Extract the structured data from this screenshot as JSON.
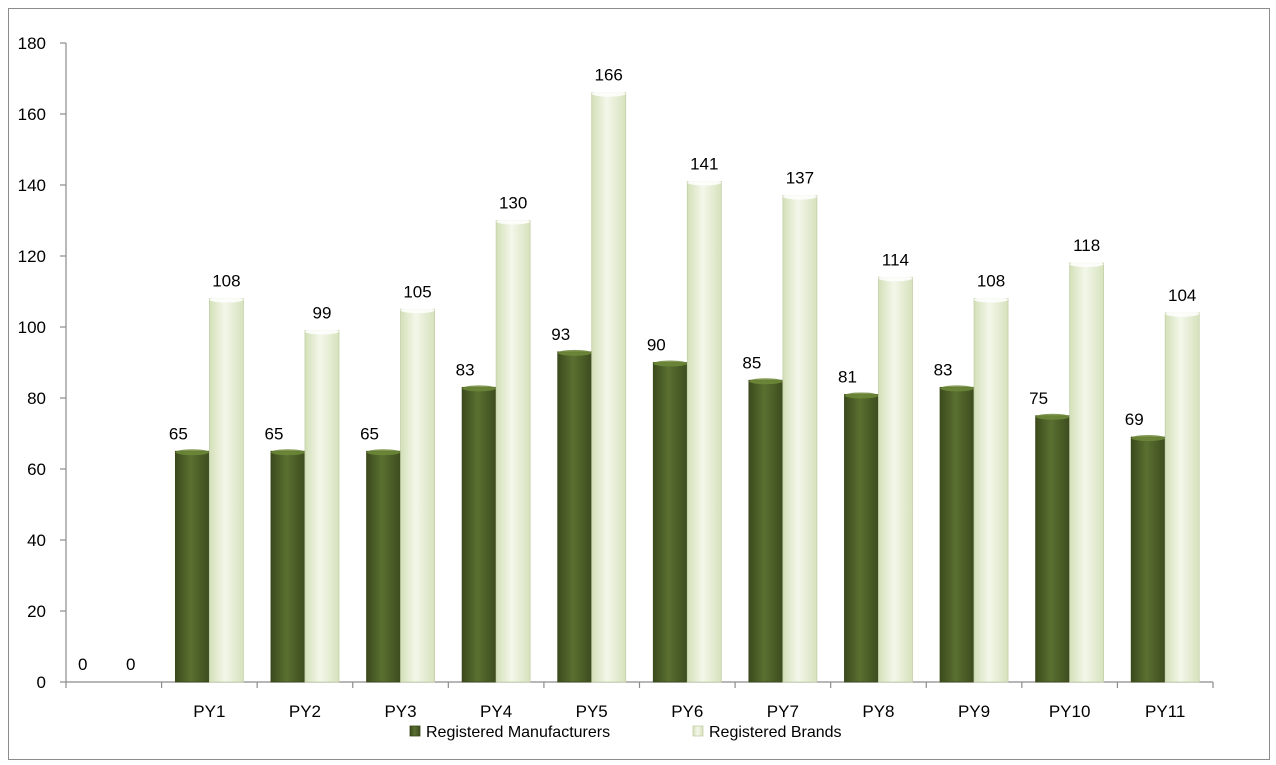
{
  "chart_data": {
    "type": "bar",
    "title": "",
    "xlabel": "",
    "ylabel": "",
    "categories": [
      "",
      "PY1",
      "PY2",
      "PY3",
      "PY4",
      "PY5",
      "PY6",
      "PY7",
      "PY8",
      "PY9",
      "PY10",
      "PY11"
    ],
    "series": [
      {
        "name": "Registered Manufacturers",
        "color": "#4f6228",
        "values": [
          0,
          65,
          65,
          65,
          83,
          93,
          90,
          85,
          81,
          83,
          75,
          69
        ]
      },
      {
        "name": "Registered Brands",
        "color": "#ebf1de",
        "values": [
          0,
          108,
          99,
          105,
          130,
          166,
          141,
          137,
          114,
          108,
          118,
          104
        ]
      }
    ],
    "ylim": [
      0,
      180
    ],
    "yticks": [
      0,
      20,
      40,
      60,
      80,
      100,
      120,
      140,
      160,
      180
    ],
    "grid": false,
    "data_labels": true,
    "legend_position": "bottom"
  }
}
